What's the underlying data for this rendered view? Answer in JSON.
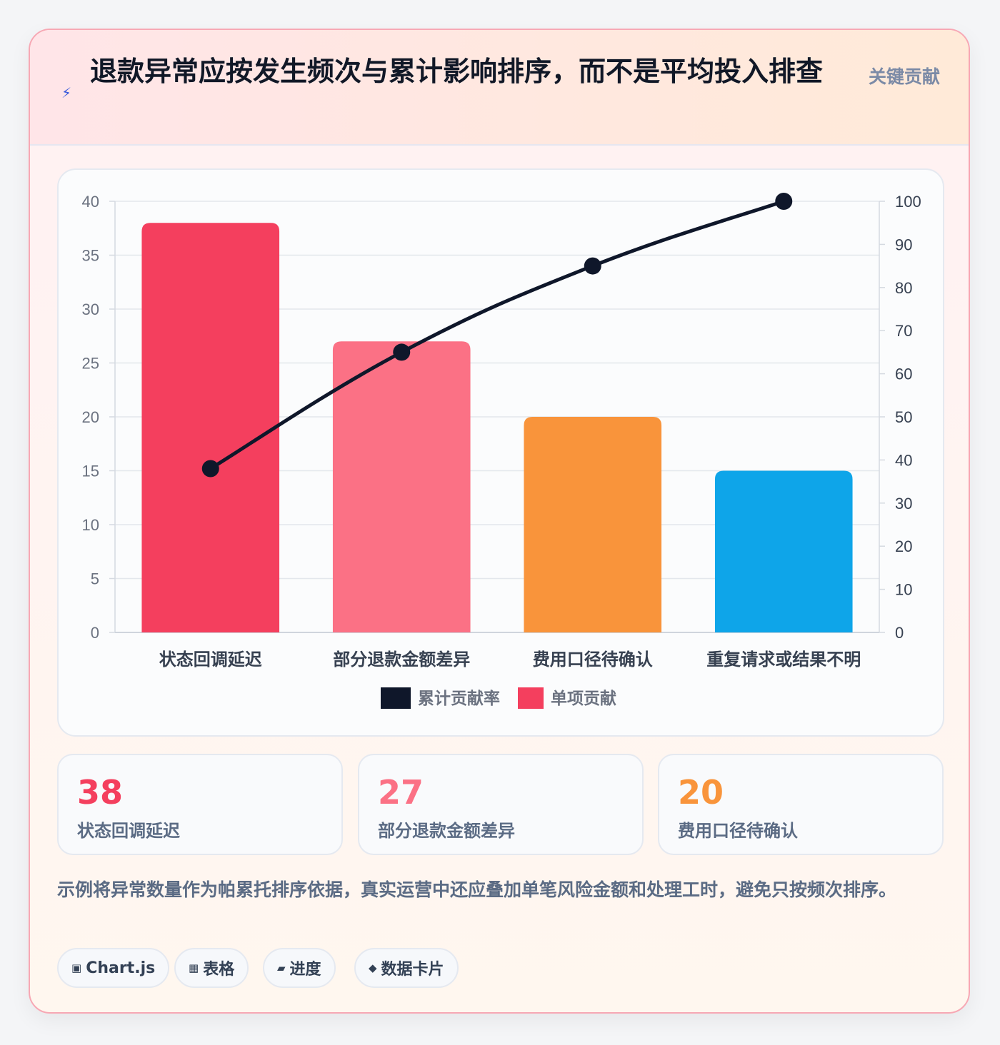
{
  "header": {
    "icon": "lightning-icon",
    "title": "退款异常应按发生频次与累计影响排序，而不是平均投入排查",
    "tag": "关键贡献"
  },
  "colors": {
    "bars": [
      "#f43f5e",
      "#fb7185",
      "#f9943b",
      "#0ea5e9"
    ],
    "line": "#0f172a"
  },
  "chart_data": {
    "type": "bar",
    "categories": [
      "状态回调延迟",
      "部分退款金额差异",
      "费用口径待确认",
      "重复请求或结果不明"
    ],
    "series": [
      {
        "name": "单项贡献",
        "type": "bar",
        "axis": "left",
        "values": [
          38,
          27,
          20,
          15
        ]
      },
      {
        "name": "累计贡献率",
        "type": "line",
        "axis": "right",
        "values": [
          38,
          65,
          85,
          100
        ]
      }
    ],
    "ylim": [
      0,
      40
    ],
    "y_ticks": [
      0,
      5,
      10,
      15,
      20,
      25,
      30,
      35,
      40
    ],
    "y2lim": [
      0,
      100
    ],
    "y2_ticks": [
      0,
      10,
      20,
      30,
      40,
      50,
      60,
      70,
      80,
      90,
      100
    ],
    "legend": [
      "累计贡献率",
      "单项贡献"
    ],
    "legend_position": "bottom",
    "grid": true
  },
  "stats": [
    {
      "value": "38",
      "label": "状态回调延迟"
    },
    {
      "value": "27",
      "label": "部分退款金额差异"
    },
    {
      "value": "20",
      "label": "费用口径待确认"
    }
  ],
  "note": "示例将异常数量作为帕累托排序依据，真实运营中还应叠加单笔风险金额和处理工时，避免只按频次排序。",
  "pills": [
    {
      "icon": "▣",
      "icon_name": "chart-icon",
      "label": "Chart.js"
    },
    {
      "icon": "▦",
      "icon_name": "table-icon",
      "label": "表格"
    },
    {
      "icon": "▰",
      "icon_name": "progress-icon",
      "label": "进度"
    },
    {
      "icon": "◆",
      "icon_name": "card-icon",
      "label": "数据卡片"
    }
  ]
}
